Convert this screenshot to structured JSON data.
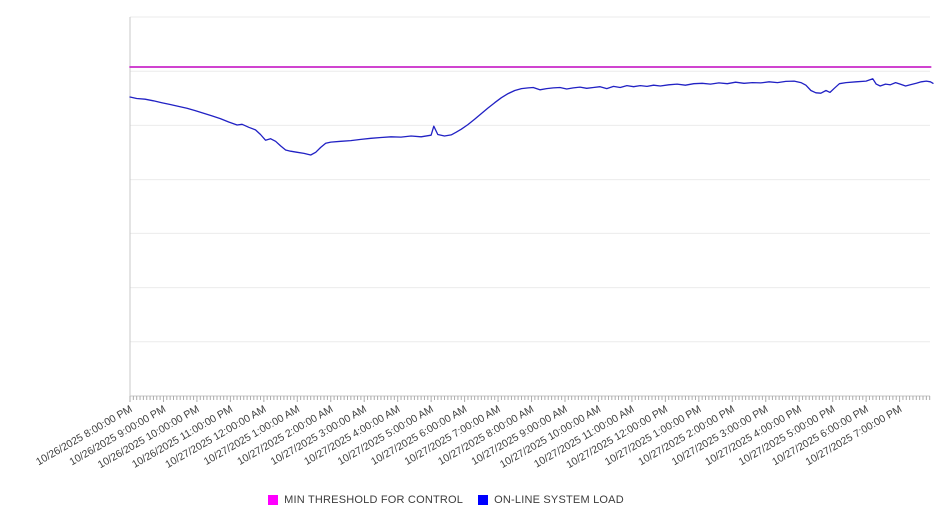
{
  "chart_data": {
    "type": "line",
    "title": "",
    "xlabel": "",
    "ylabel": "",
    "x_unit": "hours since 10/26/2025 8:00:00 PM",
    "x_range_hours": [
      0,
      24
    ],
    "x_tick_labels": [
      "10/26/2025 8:00:00 PM",
      "10/26/2025 9:00:00 PM",
      "10/26/2025 10:00:00 PM",
      "10/26/2025 11:00:00 PM",
      "10/27/2025 12:00:00 AM",
      "10/27/2025 1:00:00 AM",
      "10/27/2025 2:00:00 AM",
      "10/27/2025 3:00:00 AM",
      "10/27/2025 4:00:00 AM",
      "10/27/2025 5:00:00 AM",
      "10/27/2025 6:00:00 AM",
      "10/27/2025 7:00:00 AM",
      "10/27/2025 8:00:00 AM",
      "10/27/2025 9:00:00 AM",
      "10/27/2025 10:00:00 AM",
      "10/27/2025 11:00:00 AM",
      "10/27/2025 12:00:00 PM",
      "10/27/2025 1:00:00 PM",
      "10/27/2025 2:00:00 PM",
      "10/27/2025 3:00:00 PM",
      "10/27/2025 4:00:00 PM",
      "10/27/2025 5:00:00 PM",
      "10/27/2025 6:00:00 PM",
      "10/27/2025 7:00:00 PM"
    ],
    "x_minor_tick_interval_hours": 0.1,
    "ylim": [
      0,
      100
    ],
    "y_axis_labels": "none",
    "y_gridline_values": [
      0,
      14.3,
      28.6,
      42.9,
      57.1,
      71.4,
      85.7,
      100
    ],
    "grid": "horizontal-only",
    "legend_position": "bottom-center",
    "series": [
      {
        "name": "MIN THRESHOLD FOR CONTROL",
        "type": "constant",
        "value": 86.8,
        "x_start": 0,
        "x_end": 23.93,
        "color": "#c929c9",
        "swatch_color": "#ff00ff"
      },
      {
        "name": "ON-LINE SYSTEM LOAD",
        "type": "points",
        "color": "#2121c4",
        "swatch_color": "#0000ff",
        "points": [
          [
            0.0,
            78.9
          ],
          [
            0.2,
            78.5
          ],
          [
            0.45,
            78.3
          ],
          [
            0.7,
            77.9
          ],
          [
            0.95,
            77.4
          ],
          [
            1.2,
            76.9
          ],
          [
            1.45,
            76.4
          ],
          [
            1.7,
            75.9
          ],
          [
            1.95,
            75.3
          ],
          [
            2.2,
            74.6
          ],
          [
            2.45,
            73.9
          ],
          [
            2.7,
            73.2
          ],
          [
            2.95,
            72.3
          ],
          [
            3.2,
            71.5
          ],
          [
            3.35,
            71.7
          ],
          [
            3.55,
            70.9
          ],
          [
            3.75,
            70.2
          ],
          [
            3.9,
            69.0
          ],
          [
            4.05,
            67.5
          ],
          [
            4.2,
            67.9
          ],
          [
            4.35,
            67.2
          ],
          [
            4.5,
            66.0
          ],
          [
            4.65,
            64.9
          ],
          [
            4.8,
            64.6
          ],
          [
            5.0,
            64.3
          ],
          [
            5.2,
            64.0
          ],
          [
            5.4,
            63.6
          ],
          [
            5.55,
            64.3
          ],
          [
            5.7,
            65.6
          ],
          [
            5.85,
            66.7
          ],
          [
            6.0,
            67.0
          ],
          [
            6.3,
            67.2
          ],
          [
            6.6,
            67.4
          ],
          [
            6.9,
            67.7
          ],
          [
            7.2,
            68.0
          ],
          [
            7.5,
            68.2
          ],
          [
            7.8,
            68.4
          ],
          [
            8.1,
            68.3
          ],
          [
            8.4,
            68.6
          ],
          [
            8.7,
            68.4
          ],
          [
            9.0,
            68.8
          ],
          [
            9.08,
            71.2
          ],
          [
            9.2,
            69.0
          ],
          [
            9.4,
            68.6
          ],
          [
            9.6,
            68.9
          ],
          [
            9.75,
            69.6
          ],
          [
            9.9,
            70.4
          ],
          [
            10.1,
            71.6
          ],
          [
            10.3,
            73.0
          ],
          [
            10.5,
            74.5
          ],
          [
            10.7,
            76.0
          ],
          [
            10.9,
            77.4
          ],
          [
            11.1,
            78.7
          ],
          [
            11.3,
            79.8
          ],
          [
            11.5,
            80.6
          ],
          [
            11.7,
            81.1
          ],
          [
            11.9,
            81.3
          ],
          [
            12.05,
            81.4
          ],
          [
            12.25,
            80.8
          ],
          [
            12.45,
            81.1
          ],
          [
            12.65,
            81.3
          ],
          [
            12.85,
            81.4
          ],
          [
            13.05,
            81.0
          ],
          [
            13.25,
            81.3
          ],
          [
            13.45,
            81.5
          ],
          [
            13.65,
            81.2
          ],
          [
            13.85,
            81.4
          ],
          [
            14.05,
            81.6
          ],
          [
            14.25,
            81.1
          ],
          [
            14.45,
            81.7
          ],
          [
            14.65,
            81.4
          ],
          [
            14.85,
            81.9
          ],
          [
            15.05,
            81.6
          ],
          [
            15.25,
            81.9
          ],
          [
            15.45,
            81.7
          ],
          [
            15.65,
            82.0
          ],
          [
            15.85,
            81.8
          ],
          [
            16.1,
            82.1
          ],
          [
            16.35,
            82.3
          ],
          [
            16.6,
            82.0
          ],
          [
            16.85,
            82.4
          ],
          [
            17.1,
            82.5
          ],
          [
            17.35,
            82.3
          ],
          [
            17.6,
            82.6
          ],
          [
            17.85,
            82.4
          ],
          [
            18.1,
            82.8
          ],
          [
            18.35,
            82.5
          ],
          [
            18.6,
            82.7
          ],
          [
            18.85,
            82.6
          ],
          [
            19.1,
            82.9
          ],
          [
            19.35,
            82.7
          ],
          [
            19.6,
            83.0
          ],
          [
            19.85,
            83.1
          ],
          [
            20.05,
            82.7
          ],
          [
            20.2,
            82.0
          ],
          [
            20.35,
            80.6
          ],
          [
            20.5,
            80.0
          ],
          [
            20.65,
            79.9
          ],
          [
            20.8,
            80.6
          ],
          [
            20.92,
            80.1
          ],
          [
            21.05,
            81.2
          ],
          [
            21.2,
            82.4
          ],
          [
            21.4,
            82.7
          ],
          [
            21.7,
            82.9
          ],
          [
            22.0,
            83.1
          ],
          [
            22.2,
            83.7
          ],
          [
            22.3,
            82.3
          ],
          [
            22.42,
            81.8
          ],
          [
            22.58,
            82.3
          ],
          [
            22.72,
            82.1
          ],
          [
            22.88,
            82.7
          ],
          [
            23.02,
            82.3
          ],
          [
            23.18,
            81.8
          ],
          [
            23.32,
            82.1
          ],
          [
            23.5,
            82.5
          ],
          [
            23.65,
            82.9
          ],
          [
            23.8,
            83.1
          ],
          [
            23.92,
            82.9
          ],
          [
            24.0,
            82.5
          ]
        ]
      }
    ],
    "colors": {
      "gridline": "#ebebeb",
      "axis": "#c9c9c9",
      "tick": "#aaaaaa",
      "label_text": "#3f3f3f"
    }
  }
}
